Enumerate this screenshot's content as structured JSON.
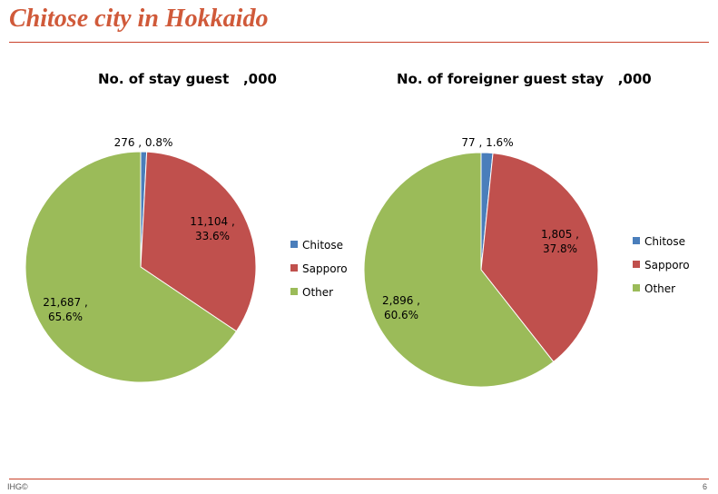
{
  "page": {
    "title": "Chitose city in Hokkaido",
    "footer_left": "IHG©",
    "footer_right": "6"
  },
  "chart_data": [
    {
      "type": "pie",
      "title": "No. of stay guest   ,000",
      "categories": [
        "Chitose",
        "Sapporo",
        "Other"
      ],
      "values": [
        276,
        11104,
        21687
      ],
      "percent": [
        "0.8%",
        "33.6%",
        "65.6%"
      ],
      "labels": [
        [
          "276 , 0.8%"
        ],
        [
          "11,104 ,",
          "33.6%"
        ],
        [
          "21,687 ,",
          "65.6%"
        ]
      ],
      "colors": [
        "#4a7ebb",
        "#c0504d",
        "#9bbb59"
      ],
      "legend": "right"
    },
    {
      "type": "pie",
      "title": "No. of foreigner guest stay   ,000",
      "categories": [
        "Chitose",
        "Sapporo",
        "Other"
      ],
      "values": [
        77,
        1805,
        2896
      ],
      "percent": [
        "1.6%",
        "37.8%",
        "60.6%"
      ],
      "labels": [
        [
          "77 , 1.6%"
        ],
        [
          "1,805 ,",
          "37.8%"
        ],
        [
          "2,896 ,",
          "60.6%"
        ]
      ],
      "colors": [
        "#4a7ebb",
        "#c0504d",
        "#9bbb59"
      ],
      "legend": "right"
    }
  ]
}
